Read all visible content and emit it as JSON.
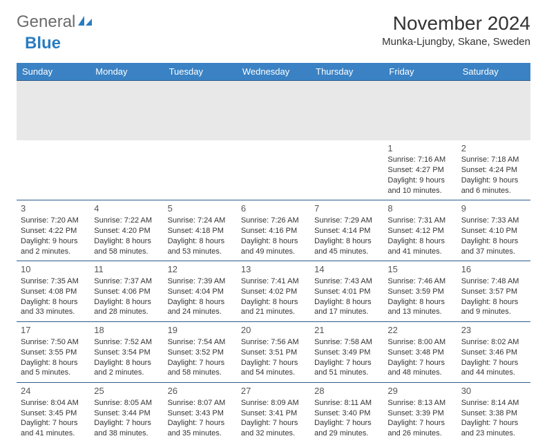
{
  "logo": {
    "word1": "General",
    "word2": "Blue"
  },
  "title": "November 2024",
  "location": "Munka-Ljungby, Skane, Sweden",
  "colors": {
    "header_bg": "#3a82c4",
    "header_text": "#ffffff",
    "border": "#2a5a8a",
    "stripe": "#e8e8e8",
    "logo_gray": "#6b6b6b",
    "logo_blue": "#2a7cc0"
  },
  "day_headers": [
    "Sunday",
    "Monday",
    "Tuesday",
    "Wednesday",
    "Thursday",
    "Friday",
    "Saturday"
  ],
  "weeks": [
    [
      null,
      null,
      null,
      null,
      null,
      {
        "n": "1",
        "sr": "Sunrise: 7:16 AM",
        "ss": "Sunset: 4:27 PM",
        "d1": "Daylight: 9 hours",
        "d2": "and 10 minutes."
      },
      {
        "n": "2",
        "sr": "Sunrise: 7:18 AM",
        "ss": "Sunset: 4:24 PM",
        "d1": "Daylight: 9 hours",
        "d2": "and 6 minutes."
      }
    ],
    [
      {
        "n": "3",
        "sr": "Sunrise: 7:20 AM",
        "ss": "Sunset: 4:22 PM",
        "d1": "Daylight: 9 hours",
        "d2": "and 2 minutes."
      },
      {
        "n": "4",
        "sr": "Sunrise: 7:22 AM",
        "ss": "Sunset: 4:20 PM",
        "d1": "Daylight: 8 hours",
        "d2": "and 58 minutes."
      },
      {
        "n": "5",
        "sr": "Sunrise: 7:24 AM",
        "ss": "Sunset: 4:18 PM",
        "d1": "Daylight: 8 hours",
        "d2": "and 53 minutes."
      },
      {
        "n": "6",
        "sr": "Sunrise: 7:26 AM",
        "ss": "Sunset: 4:16 PM",
        "d1": "Daylight: 8 hours",
        "d2": "and 49 minutes."
      },
      {
        "n": "7",
        "sr": "Sunrise: 7:29 AM",
        "ss": "Sunset: 4:14 PM",
        "d1": "Daylight: 8 hours",
        "d2": "and 45 minutes."
      },
      {
        "n": "8",
        "sr": "Sunrise: 7:31 AM",
        "ss": "Sunset: 4:12 PM",
        "d1": "Daylight: 8 hours",
        "d2": "and 41 minutes."
      },
      {
        "n": "9",
        "sr": "Sunrise: 7:33 AM",
        "ss": "Sunset: 4:10 PM",
        "d1": "Daylight: 8 hours",
        "d2": "and 37 minutes."
      }
    ],
    [
      {
        "n": "10",
        "sr": "Sunrise: 7:35 AM",
        "ss": "Sunset: 4:08 PM",
        "d1": "Daylight: 8 hours",
        "d2": "and 33 minutes."
      },
      {
        "n": "11",
        "sr": "Sunrise: 7:37 AM",
        "ss": "Sunset: 4:06 PM",
        "d1": "Daylight: 8 hours",
        "d2": "and 28 minutes."
      },
      {
        "n": "12",
        "sr": "Sunrise: 7:39 AM",
        "ss": "Sunset: 4:04 PM",
        "d1": "Daylight: 8 hours",
        "d2": "and 24 minutes."
      },
      {
        "n": "13",
        "sr": "Sunrise: 7:41 AM",
        "ss": "Sunset: 4:02 PM",
        "d1": "Daylight: 8 hours",
        "d2": "and 21 minutes."
      },
      {
        "n": "14",
        "sr": "Sunrise: 7:43 AM",
        "ss": "Sunset: 4:01 PM",
        "d1": "Daylight: 8 hours",
        "d2": "and 17 minutes."
      },
      {
        "n": "15",
        "sr": "Sunrise: 7:46 AM",
        "ss": "Sunset: 3:59 PM",
        "d1": "Daylight: 8 hours",
        "d2": "and 13 minutes."
      },
      {
        "n": "16",
        "sr": "Sunrise: 7:48 AM",
        "ss": "Sunset: 3:57 PM",
        "d1": "Daylight: 8 hours",
        "d2": "and 9 minutes."
      }
    ],
    [
      {
        "n": "17",
        "sr": "Sunrise: 7:50 AM",
        "ss": "Sunset: 3:55 PM",
        "d1": "Daylight: 8 hours",
        "d2": "and 5 minutes."
      },
      {
        "n": "18",
        "sr": "Sunrise: 7:52 AM",
        "ss": "Sunset: 3:54 PM",
        "d1": "Daylight: 8 hours",
        "d2": "and 2 minutes."
      },
      {
        "n": "19",
        "sr": "Sunrise: 7:54 AM",
        "ss": "Sunset: 3:52 PM",
        "d1": "Daylight: 7 hours",
        "d2": "and 58 minutes."
      },
      {
        "n": "20",
        "sr": "Sunrise: 7:56 AM",
        "ss": "Sunset: 3:51 PM",
        "d1": "Daylight: 7 hours",
        "d2": "and 54 minutes."
      },
      {
        "n": "21",
        "sr": "Sunrise: 7:58 AM",
        "ss": "Sunset: 3:49 PM",
        "d1": "Daylight: 7 hours",
        "d2": "and 51 minutes."
      },
      {
        "n": "22",
        "sr": "Sunrise: 8:00 AM",
        "ss": "Sunset: 3:48 PM",
        "d1": "Daylight: 7 hours",
        "d2": "and 48 minutes."
      },
      {
        "n": "23",
        "sr": "Sunrise: 8:02 AM",
        "ss": "Sunset: 3:46 PM",
        "d1": "Daylight: 7 hours",
        "d2": "and 44 minutes."
      }
    ],
    [
      {
        "n": "24",
        "sr": "Sunrise: 8:04 AM",
        "ss": "Sunset: 3:45 PM",
        "d1": "Daylight: 7 hours",
        "d2": "and 41 minutes."
      },
      {
        "n": "25",
        "sr": "Sunrise: 8:05 AM",
        "ss": "Sunset: 3:44 PM",
        "d1": "Daylight: 7 hours",
        "d2": "and 38 minutes."
      },
      {
        "n": "26",
        "sr": "Sunrise: 8:07 AM",
        "ss": "Sunset: 3:43 PM",
        "d1": "Daylight: 7 hours",
        "d2": "and 35 minutes."
      },
      {
        "n": "27",
        "sr": "Sunrise: 8:09 AM",
        "ss": "Sunset: 3:41 PM",
        "d1": "Daylight: 7 hours",
        "d2": "and 32 minutes."
      },
      {
        "n": "28",
        "sr": "Sunrise: 8:11 AM",
        "ss": "Sunset: 3:40 PM",
        "d1": "Daylight: 7 hours",
        "d2": "and 29 minutes."
      },
      {
        "n": "29",
        "sr": "Sunrise: 8:13 AM",
        "ss": "Sunset: 3:39 PM",
        "d1": "Daylight: 7 hours",
        "d2": "and 26 minutes."
      },
      {
        "n": "30",
        "sr": "Sunrise: 8:14 AM",
        "ss": "Sunset: 3:38 PM",
        "d1": "Daylight: 7 hours",
        "d2": "and 23 minutes."
      }
    ]
  ]
}
